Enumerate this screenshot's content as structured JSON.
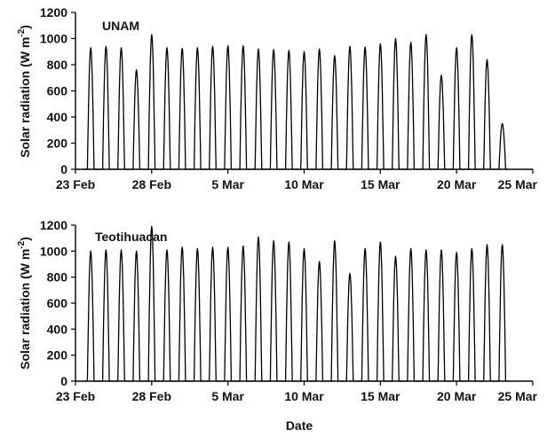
{
  "chart_data": [
    {
      "type": "line",
      "panel_label": "UNAM",
      "ylabel": "Solar radiation (W m",
      "ylabel_sup": "-2",
      "ylabel_close": ")",
      "xlabel": "",
      "ylim": [
        0,
        1200
      ],
      "yticks": [
        0,
        200,
        400,
        600,
        800,
        1000,
        1200
      ],
      "xlim": [
        "Feb 23",
        "Mar 25"
      ],
      "xticks": [
        {
          "date": "Feb 23",
          "label": "23 Feb"
        },
        {
          "date": "Feb 28",
          "label": "28 Feb"
        },
        {
          "date": "Mar 5",
          "label": "5 Mar"
        },
        {
          "date": "Mar 10",
          "label": "10 Mar"
        },
        {
          "date": "Mar 15",
          "label": "15 Mar"
        },
        {
          "date": "Mar 20",
          "label": "20 Mar"
        },
        {
          "date": "Mar 25",
          "label": "25 Mar"
        }
      ],
      "series": [
        {
          "daily_peaks": [
            {
              "date": "Feb 24",
              "value": 930
            },
            {
              "date": "Feb 25",
              "value": 940
            },
            {
              "date": "Feb 26",
              "value": 930
            },
            {
              "date": "Feb 27",
              "value": 760
            },
            {
              "date": "Feb 28",
              "value": 1030
            },
            {
              "date": "Mar 1",
              "value": 930
            },
            {
              "date": "Mar 2",
              "value": 925
            },
            {
              "date": "Mar 3",
              "value": 930
            },
            {
              "date": "Mar 4",
              "value": 940
            },
            {
              "date": "Mar 5",
              "value": 945
            },
            {
              "date": "Mar 6",
              "value": 945
            },
            {
              "date": "Mar 7",
              "value": 920
            },
            {
              "date": "Mar 8",
              "value": 915
            },
            {
              "date": "Mar 9",
              "value": 910
            },
            {
              "date": "Mar 10",
              "value": 900
            },
            {
              "date": "Mar 11",
              "value": 920
            },
            {
              "date": "Mar 12",
              "value": 870
            },
            {
              "date": "Mar 13",
              "value": 940
            },
            {
              "date": "Mar 14",
              "value": 935
            },
            {
              "date": "Mar 15",
              "value": 960
            },
            {
              "date": "Mar 16",
              "value": 1000
            },
            {
              "date": "Mar 17",
              "value": 970
            },
            {
              "date": "Mar 18",
              "value": 1030
            },
            {
              "date": "Mar 19",
              "value": 720
            },
            {
              "date": "Mar 20",
              "value": 930
            },
            {
              "date": "Mar 21",
              "value": 1030
            },
            {
              "date": "Mar 22",
              "value": 840
            },
            {
              "date": "Mar 23",
              "value": 350
            }
          ]
        }
      ]
    },
    {
      "type": "line",
      "panel_label": "Teotihuacan",
      "ylabel": "Solar radiation (W m",
      "ylabel_sup": "-2",
      "ylabel_close": ")",
      "xlabel": "Date",
      "ylim": [
        0,
        1200
      ],
      "yticks": [
        0,
        200,
        400,
        600,
        800,
        1000,
        1200
      ],
      "xlim": [
        "Feb 23",
        "Mar 25"
      ],
      "xticks": [
        {
          "date": "Feb 23",
          "label": "23 Feb"
        },
        {
          "date": "Feb 28",
          "label": "28 Feb"
        },
        {
          "date": "Mar 5",
          "label": "5 Mar"
        },
        {
          "date": "Mar 10",
          "label": "10 Mar"
        },
        {
          "date": "Mar 15",
          "label": "15 Mar"
        },
        {
          "date": "Mar 20",
          "label": "20 Mar"
        },
        {
          "date": "Mar 25",
          "label": "25 Mar"
        }
      ],
      "series": [
        {
          "daily_peaks": [
            {
              "date": "Feb 24",
              "value": 1000
            },
            {
              "date": "Feb 25",
              "value": 1010
            },
            {
              "date": "Feb 26",
              "value": 1010
            },
            {
              "date": "Feb 27",
              "value": 1000
            },
            {
              "date": "Feb 28",
              "value": 1190
            },
            {
              "date": "Mar 1",
              "value": 1010
            },
            {
              "date": "Mar 2",
              "value": 1030
            },
            {
              "date": "Mar 3",
              "value": 1020
            },
            {
              "date": "Mar 4",
              "value": 1030
            },
            {
              "date": "Mar 5",
              "value": 1030
            },
            {
              "date": "Mar 6",
              "value": 1040
            },
            {
              "date": "Mar 7",
              "value": 1110
            },
            {
              "date": "Mar 8",
              "value": 1080
            },
            {
              "date": "Mar 9",
              "value": 1070
            },
            {
              "date": "Mar 10",
              "value": 1020
            },
            {
              "date": "Mar 11",
              "value": 920
            },
            {
              "date": "Mar 12",
              "value": 1080
            },
            {
              "date": "Mar 13",
              "value": 830
            },
            {
              "date": "Mar 14",
              "value": 1020
            },
            {
              "date": "Mar 15",
              "value": 1070
            },
            {
              "date": "Mar 16",
              "value": 960
            },
            {
              "date": "Mar 17",
              "value": 1020
            },
            {
              "date": "Mar 18",
              "value": 1010
            },
            {
              "date": "Mar 19",
              "value": 1010
            },
            {
              "date": "Mar 20",
              "value": 990
            },
            {
              "date": "Mar 21",
              "value": 1020
            },
            {
              "date": "Mar 22",
              "value": 1050
            },
            {
              "date": "Mar 23",
              "value": 1050
            }
          ]
        }
      ]
    }
  ]
}
